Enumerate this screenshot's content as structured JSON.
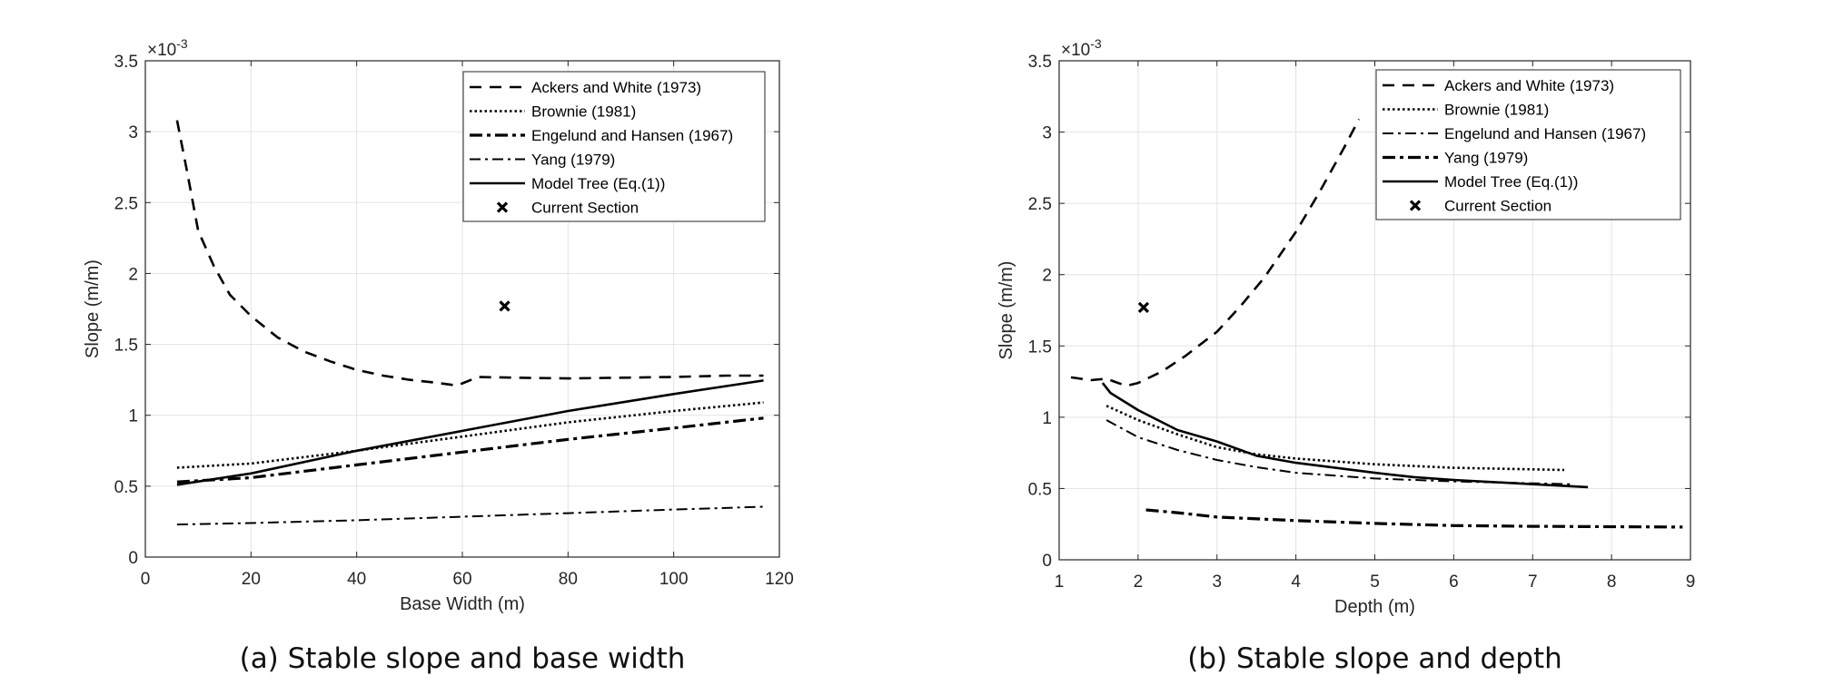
{
  "chart_data": [
    {
      "type": "line",
      "caption": "(a) Stable slope and base width",
      "xlabel": "Base Width (m)",
      "ylabel": "Slope (m/m)",
      "y_multiplier": "×10",
      "y_multiplier_exp": "-3",
      "xlim": [
        0,
        120
      ],
      "ylim": [
        0,
        3.5
      ],
      "xticks": [
        0,
        20,
        40,
        60,
        80,
        100,
        120
      ],
      "yticks": [
        0,
        0.5,
        1,
        1.5,
        2,
        2.5,
        3,
        3.5
      ],
      "grid": true,
      "legend_position": "top-right",
      "series": [
        {
          "name": "Ackers and White (1973)",
          "style": "dashed",
          "x": [
            6,
            8,
            10,
            13,
            16,
            20,
            25,
            30,
            35,
            40,
            45,
            50,
            55,
            59,
            63,
            70,
            80,
            90,
            100,
            110,
            117
          ],
          "y": [
            3.08,
            2.7,
            2.3,
            2.05,
            1.85,
            1.7,
            1.55,
            1.45,
            1.38,
            1.32,
            1.28,
            1.25,
            1.23,
            1.21,
            1.27,
            1.265,
            1.26,
            1.265,
            1.27,
            1.28,
            1.28
          ]
        },
        {
          "name": "Brownie (1981)",
          "style": "dotted",
          "x": [
            6,
            20,
            40,
            60,
            80,
            100,
            117
          ],
          "y": [
            0.63,
            0.66,
            0.75,
            0.85,
            0.95,
            1.03,
            1.09
          ]
        },
        {
          "name": "Engelund and Hansen (1967)",
          "style": "dashdot-thick",
          "x": [
            6,
            20,
            40,
            60,
            80,
            100,
            117
          ],
          "y": [
            0.53,
            0.56,
            0.65,
            0.74,
            0.83,
            0.91,
            0.98
          ]
        },
        {
          "name": "Yang (1979)",
          "style": "dashdot",
          "x": [
            6,
            20,
            40,
            60,
            80,
            100,
            117
          ],
          "y": [
            0.23,
            0.24,
            0.26,
            0.285,
            0.31,
            0.335,
            0.355
          ]
        },
        {
          "name": "Model Tree (Eq.(1))",
          "style": "solid",
          "x": [
            6,
            20,
            40,
            60,
            80,
            100,
            117
          ],
          "y": [
            0.51,
            0.59,
            0.75,
            0.89,
            1.03,
            1.15,
            1.245
          ]
        },
        {
          "name": "Current Section",
          "style": "marker-x",
          "x": [
            68
          ],
          "y": [
            1.77
          ]
        }
      ]
    },
    {
      "type": "line",
      "caption": "(b) Stable slope and depth",
      "xlabel": "Depth (m)",
      "ylabel": "Slope (m/m)",
      "y_multiplier": "×10",
      "y_multiplier_exp": "-3",
      "xlim": [
        1,
        9
      ],
      "ylim": [
        0,
        3.5
      ],
      "xticks": [
        1,
        2,
        3,
        4,
        5,
        6,
        7,
        8,
        9
      ],
      "yticks": [
        0,
        0.5,
        1,
        1.5,
        2,
        2.5,
        3,
        3.5
      ],
      "grid": true,
      "legend_position": "top-right",
      "series": [
        {
          "name": "Ackers and White (1973)",
          "style": "dashed",
          "x": [
            1.15,
            1.4,
            1.6,
            1.7,
            1.85,
            2,
            2.3,
            2.6,
            3,
            3.3,
            3.6,
            4,
            4.3,
            4.6,
            4.8
          ],
          "y": [
            1.28,
            1.26,
            1.27,
            1.25,
            1.22,
            1.24,
            1.32,
            1.43,
            1.6,
            1.78,
            1.98,
            2.3,
            2.58,
            2.88,
            3.09
          ]
        },
        {
          "name": "Brownie (1981)",
          "style": "dotted",
          "x": [
            1.6,
            2,
            2.5,
            3,
            3.5,
            4,
            5,
            6,
            7.4
          ],
          "y": [
            1.08,
            0.98,
            0.88,
            0.79,
            0.74,
            0.71,
            0.67,
            0.645,
            0.63
          ]
        },
        {
          "name": "Engelund and Hansen (1967)",
          "style": "dashdot",
          "x": [
            1.6,
            2,
            2.5,
            3,
            3.5,
            4,
            5,
            6,
            7.5
          ],
          "y": [
            0.98,
            0.86,
            0.77,
            0.7,
            0.65,
            0.61,
            0.57,
            0.55,
            0.53
          ]
        },
        {
          "name": "Yang (1979)",
          "style": "dashdot-thick",
          "x": [
            2.1,
            2.5,
            3,
            4,
            5,
            6,
            7,
            8.9
          ],
          "y": [
            0.35,
            0.33,
            0.3,
            0.275,
            0.255,
            0.24,
            0.235,
            0.23
          ]
        },
        {
          "name": "Model Tree (Eq.(1))",
          "style": "solid",
          "x": [
            1.55,
            1.65,
            2,
            2.5,
            3,
            3.5,
            4,
            5,
            5.5,
            6,
            7,
            7.7
          ],
          "y": [
            1.24,
            1.17,
            1.05,
            0.91,
            0.83,
            0.73,
            0.68,
            0.61,
            0.58,
            0.56,
            0.53,
            0.51
          ]
        },
        {
          "name": "Current Section",
          "style": "marker-x",
          "x": [
            2.07
          ],
          "y": [
            1.77
          ]
        }
      ]
    }
  ]
}
